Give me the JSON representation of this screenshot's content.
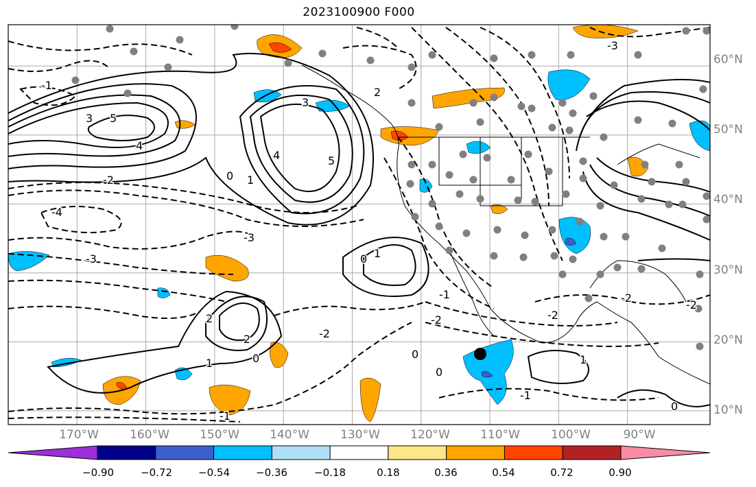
{
  "title": "2023100900 F000",
  "map": {
    "projection": "PlateCarree",
    "lon_range": [
      -180,
      -78
    ],
    "lat_range": [
      8,
      66
    ],
    "lon_ticks": [
      "170°W",
      "160°W",
      "150°W",
      "140°W",
      "130°W",
      "120°W",
      "110°W",
      "100°W",
      "90°W"
    ],
    "lat_ticks": [
      "60°N",
      "50°N",
      "40°N",
      "30°N",
      "20°N",
      "10°N"
    ],
    "grid": true,
    "contour_labels": {
      "positive": [
        "5",
        "4",
        "3",
        "2",
        "1",
        "0"
      ],
      "negative": [
        "-1",
        "-2",
        "-3",
        "-4"
      ]
    },
    "colors": {
      "positive_contour": "#000000",
      "negative_contour": "#000000",
      "coastline": "#000000",
      "grid": "#a0a0a0",
      "station_dot": "#808080",
      "storm_marker": "#000000"
    }
  },
  "colorbar": {
    "levels": [
      "−0.90",
      "−0.72",
      "−0.54",
      "−0.36",
      "−0.18",
      "0.18",
      "0.36",
      "0.54",
      "0.72",
      "0.90"
    ],
    "colors": [
      "#9b30d9",
      "#00008b",
      "#3a5fcd",
      "#00bfff",
      "#b0e0f8",
      "#ffffff",
      "#fce68a",
      "#ffa500",
      "#ff4500",
      "#b22222",
      "#f78ca5"
    ],
    "extend": "both"
  }
}
